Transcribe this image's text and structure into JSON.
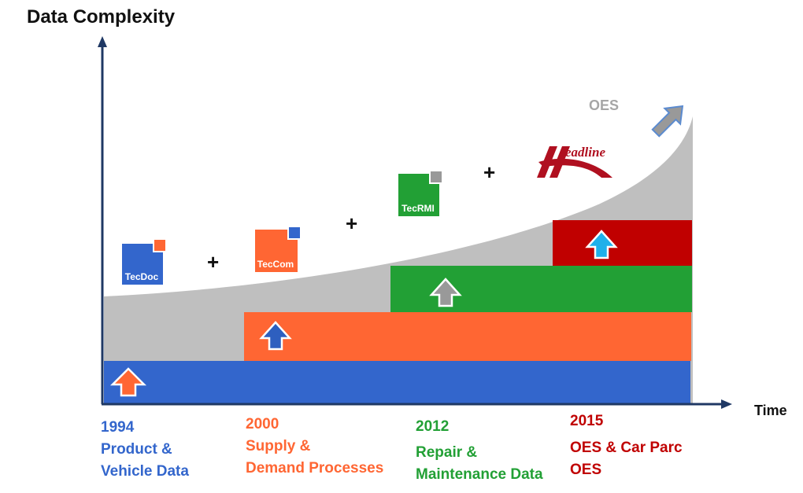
{
  "axes": {
    "y_title": "Data Complexity",
    "x_title": "Time"
  },
  "milestones": [
    {
      "year": "1994",
      "line1": "Product &",
      "line2": "Vehicle Data",
      "color": "#3366cc"
    },
    {
      "year": "2000",
      "line1": "Supply &",
      "line2": "Demand Processes",
      "color": "#ff6633"
    },
    {
      "year": "2012",
      "line1": "Repair &",
      "line2": "Maintenance Data",
      "color": "#22a035"
    },
    {
      "year": "2015",
      "line1": "OES & Car Parc",
      "line2": "OES",
      "color": "#c00000"
    }
  ],
  "logos": {
    "tecdoc": "TecDoc",
    "teccom": "TecCom",
    "tecrmi": "TecRMI",
    "headline": "eadline",
    "oes": "OES"
  },
  "separators": [
    "+",
    "+",
    "+"
  ],
  "colors": {
    "axis": "#1f3864",
    "curve_fill": "#bfbfbf",
    "blue": "#3366cc",
    "orange": "#ff6633",
    "green": "#22a035",
    "red": "#c00000",
    "arrow_gray": "#999999",
    "arrow_cyan": "#1fb0ea"
  }
}
